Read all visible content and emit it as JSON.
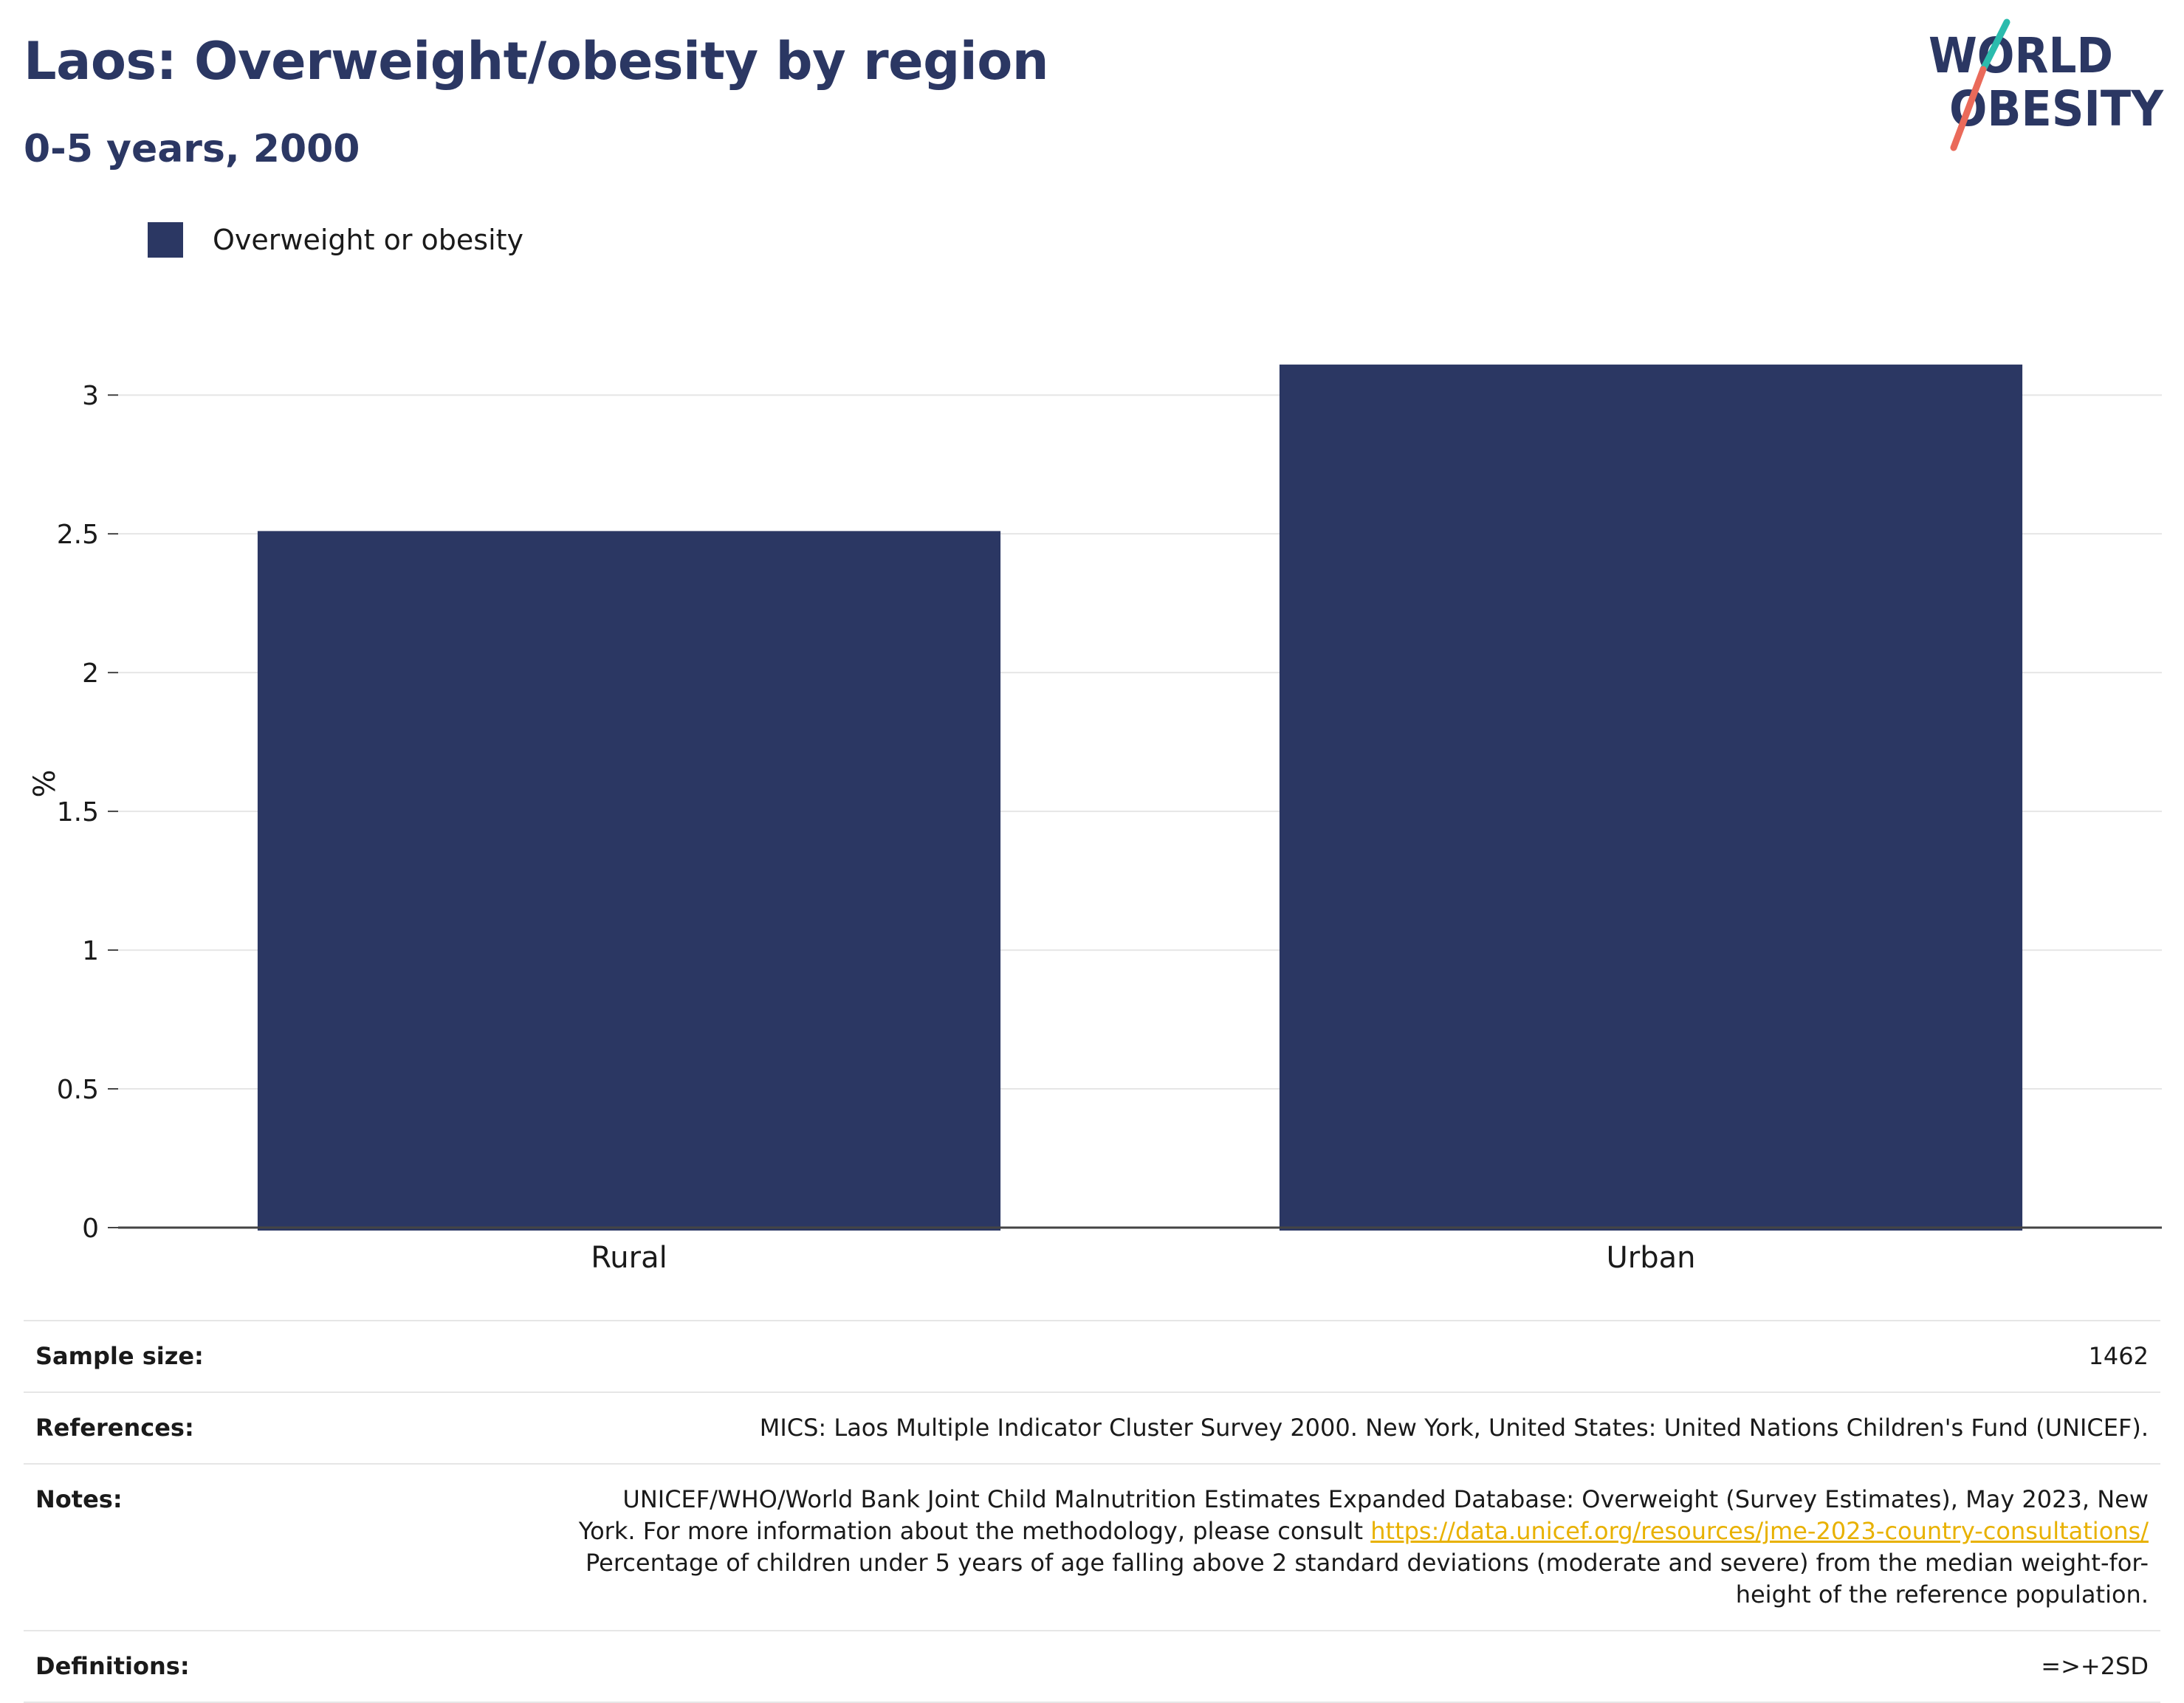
{
  "header": {
    "title": "Laos: Overweight/obesity by region",
    "subtitle": "0-5 years, 2000"
  },
  "logo": {
    "line1": "WORLD",
    "line2": "OBESITY",
    "colors": {
      "text": "#2b3763",
      "slash_top": "#2bbbad",
      "slash_bottom": "#ea6a5a"
    }
  },
  "legend": {
    "items": [
      {
        "label": "Overweight or obesity",
        "color": "#2b3763"
      }
    ]
  },
  "chart_data": {
    "type": "bar",
    "categories": [
      "Rural",
      "Urban"
    ],
    "series": [
      {
        "name": "Overweight or obesity",
        "values": [
          2.51,
          3.11
        ],
        "color": "#2b3763"
      }
    ],
    "title": "Laos: Overweight/obesity by region",
    "subtitle": "0-5 years, 2000",
    "xlabel": "",
    "ylabel": "%",
    "ylim": [
      0,
      3.2
    ],
    "yticks": [
      0,
      0.5,
      1,
      1.5,
      2,
      2.5,
      3
    ],
    "ytick_labels": [
      "0",
      "0.5",
      "1",
      "1.5",
      "2",
      "2.5",
      "3"
    ],
    "grid": true,
    "legend_position": "top-left"
  },
  "info": {
    "sample_size_label": "Sample size:",
    "sample_size_value": "1462",
    "references_label": "References:",
    "references_value": "MICS: Laos Multiple Indicator Cluster Survey 2000. New York, United States: United Nations Children's Fund (UNICEF).",
    "notes_label": "Notes:",
    "notes_line1": "UNICEF/WHO/World Bank Joint Child Malnutrition Estimates Expanded Database: Overweight (Survey Estimates), May 2023, New",
    "notes_line2_prefix": "York. For more information about the methodology, please consult ",
    "notes_link": "https://data.unicef.org/resources/jme-2023-country-consultations/",
    "notes_line3": "Percentage of children under 5 years of age falling above 2 standard deviations (moderate and severe) from the median weight-for-",
    "notes_line4": "height of the reference population.",
    "definitions_label": "Definitions:",
    "definitions_value": "=>+2SD"
  },
  "colors": {
    "brand": "#2b3763",
    "grid": "#e6e6e6",
    "axis": "#444444",
    "link": "#e8b100"
  }
}
